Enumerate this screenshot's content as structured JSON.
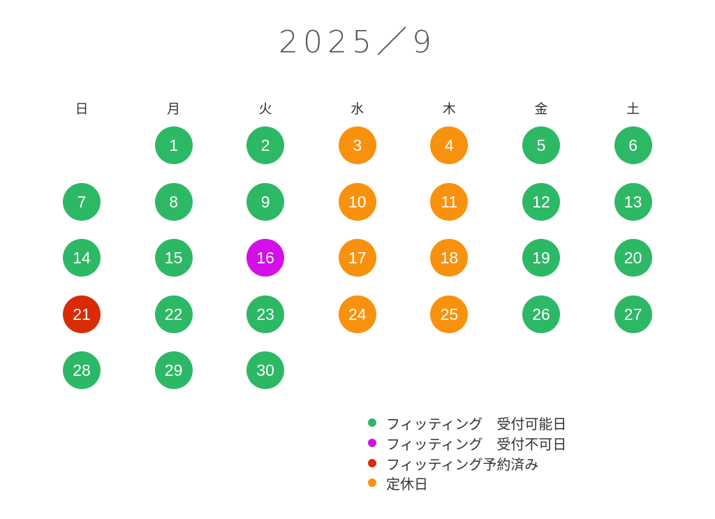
{
  "title": "2025／9",
  "weekdays": [
    "日",
    "月",
    "火",
    "水",
    "木",
    "金",
    "土"
  ],
  "first_weekday_index": 1,
  "status_colors": {
    "available": "#2DB865",
    "unavailable": "#D50FE8",
    "booked": "#D92B05",
    "closed": "#F8920E"
  },
  "days": [
    {
      "day": "1",
      "status": "available"
    },
    {
      "day": "2",
      "status": "available"
    },
    {
      "day": "3",
      "status": "closed"
    },
    {
      "day": "4",
      "status": "closed"
    },
    {
      "day": "5",
      "status": "available"
    },
    {
      "day": "6",
      "status": "available"
    },
    {
      "day": "7",
      "status": "available"
    },
    {
      "day": "8",
      "status": "available"
    },
    {
      "day": "9",
      "status": "available"
    },
    {
      "day": "10",
      "status": "closed"
    },
    {
      "day": "11",
      "status": "closed"
    },
    {
      "day": "12",
      "status": "available"
    },
    {
      "day": "13",
      "status": "available"
    },
    {
      "day": "14",
      "status": "available"
    },
    {
      "day": "15",
      "status": "available"
    },
    {
      "day": "16",
      "status": "unavailable"
    },
    {
      "day": "17",
      "status": "closed"
    },
    {
      "day": "18",
      "status": "closed"
    },
    {
      "day": "19",
      "status": "available"
    },
    {
      "day": "20",
      "status": "available"
    },
    {
      "day": "21",
      "status": "booked"
    },
    {
      "day": "22",
      "status": "available"
    },
    {
      "day": "23",
      "status": "available"
    },
    {
      "day": "24",
      "status": "closed"
    },
    {
      "day": "25",
      "status": "closed"
    },
    {
      "day": "26",
      "status": "available"
    },
    {
      "day": "27",
      "status": "available"
    },
    {
      "day": "28",
      "status": "available"
    },
    {
      "day": "29",
      "status": "available"
    },
    {
      "day": "30",
      "status": "available"
    }
  ],
  "legend": [
    {
      "label": "フィッティング　受付可能日",
      "status": "available"
    },
    {
      "label": "フィッティング　受付不可日",
      "status": "unavailable"
    },
    {
      "label": "フィッティング予約済み",
      "status": "booked"
    },
    {
      "label": "定休日",
      "status": "closed"
    }
  ]
}
